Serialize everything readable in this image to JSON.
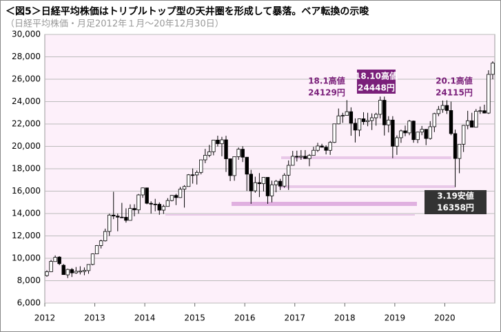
{
  "chart_data": {
    "type": "candlestick",
    "title": "＜図5＞日経平均株価はトリプルトップ型の天井圏を形成して暴落。ベア転換の示唆",
    "subtitle": "（日経平均株価・月足2012年１月～20年12月30日）",
    "annotations": [
      "18.1高値",
      "24129円",
      "18.10高値",
      "24448円",
      "20.1高値",
      "24115円",
      "3.19安値",
      "16358円"
    ],
    "categories": [
      "2012",
      null,
      null,
      null,
      null,
      null,
      null,
      null,
      null,
      null,
      null,
      null,
      "2013",
      null,
      null,
      null,
      null,
      null,
      null,
      null,
      null,
      null,
      null,
      null,
      "2014",
      null,
      null,
      null,
      null,
      null,
      null,
      null,
      null,
      null,
      null,
      null,
      "2015",
      null,
      null,
      null,
      null,
      null,
      null,
      null,
      null,
      null,
      null,
      null,
      "2016",
      null,
      null,
      null,
      null,
      null,
      null,
      null,
      null,
      null,
      null,
      null,
      "2017",
      null,
      null,
      null,
      null,
      null,
      null,
      null,
      null,
      null,
      null,
      null,
      "2018",
      null,
      null,
      null,
      null,
      null,
      null,
      null,
      null,
      null,
      null,
      null,
      "2019",
      null,
      null,
      null,
      null,
      null,
      null,
      null,
      null,
      null,
      null,
      null,
      "2020",
      null,
      null,
      null,
      null,
      null,
      null,
      null,
      null,
      null,
      null,
      null
    ],
    "open": [
      8455,
      8800,
      9707,
      10110,
      9380,
      8520,
      9000,
      8700,
      8780,
      8820,
      8900,
      9450,
      10400,
      11138,
      11559,
      12398,
      13861,
      13774,
      13677,
      13668,
      13389,
      14455,
      14327,
      15662,
      16291,
      14914,
      14841,
      14828,
      14304,
      14632,
      15162,
      15621,
      15425,
      16174,
      16414,
      17460,
      17450,
      17674,
      18797,
      19206,
      19520,
      20563,
      20235,
      20585,
      18890,
      17388,
      19083,
      19747,
      19033,
      17518,
      16026,
      16758,
      16666,
      17234,
      15575,
      16569,
      16887,
      16449,
      17425,
      18308,
      19114,
      19041,
      19118,
      18909,
      19196,
      19650,
      20033,
      19925,
      19646,
      20356,
      22011,
      22724,
      22764,
      23098,
      22068,
      21454,
      22467,
      22202,
      22305,
      22554,
      22865,
      24120,
      21920,
      22351,
      20014,
      20773,
      21385,
      21206,
      22259,
      20601,
      21276,
      21521,
      20704,
      21756,
      22927,
      23294,
      23656,
      23205,
      21143,
      18917,
      20193,
      21877,
      22288,
      21710,
      23140,
      23185,
      22977,
      26433
    ],
    "high": [
      8929,
      9866,
      10255,
      10190,
      9496,
      9075,
      9136,
      9222,
      9288,
      9181,
      9460,
      10433,
      11183,
      11662,
      12650,
      13980,
      15942,
      14000,
      14953,
      14466,
      14817,
      14828,
      15749,
      16320,
      16164,
      15094,
      15312,
      14996,
      14800,
      15376,
      15646,
      15759,
      16374,
      16533,
      17520,
      18030,
      17850,
      18800,
      19778,
      20133,
      20563,
      20952,
      20850,
      20946,
      18900,
      19100,
      19900,
      20012,
      19000,
      17905,
      17291,
      17613,
      17251,
      17100,
      16938,
      17000,
      17100,
      17600,
      18746,
      19592,
      19615,
      19668,
      19668,
      19310,
      19962,
      20318,
      20230,
      20100,
      20481,
      22011,
      23382,
      23000,
      24129,
      23486,
      22500,
      22500,
      23050,
      23000,
      22949,
      23000,
      24448,
      24448,
      22698,
      22698,
      20983,
      21500,
      21860,
      22362,
      22307,
      21300,
      21823,
      21500,
      22255,
      23000,
      23608,
      24091,
      24115,
      24000,
      21500,
      20000,
      21916,
      23178,
      23000,
      23338,
      23559,
      23725,
      26800,
      27600
    ],
    "low": [
      8349,
      8765,
      9708,
      9388,
      8560,
      8238,
      8328,
      8612,
      8560,
      8488,
      8619,
      9380,
      10398,
      10880,
      11500,
      12003,
      13500,
      12415,
      13614,
      13188,
      13388,
      13748,
      13986,
      15405,
      14826,
      13995,
      14203,
      13885,
      13964,
      14617,
      15090,
      14753,
      15397,
      14529,
      16400,
      16672,
      16592,
      17500,
      18500,
      19034,
      19200,
      19991,
      19115,
      17714,
      16901,
      16930,
      18800,
      18600,
      16017,
      14865,
      15857,
      15471,
      15975,
      14864,
      15000,
      15900,
      16100,
      16300,
      16111,
      18300,
      18650,
      18800,
      18900,
      18224,
      19200,
      19500,
      19900,
      19280,
      19239,
      20300,
      21972,
      22100,
      22800,
      20950,
      20347,
      20900,
      21931,
      21800,
      21462,
      21851,
      22500,
      20971,
      21243,
      18948,
      19241,
      20315,
      20911,
      21000,
      20327,
      20289,
      21000,
      20110,
      20600,
      21276,
      22700,
      23000,
      22892,
      21000,
      16358,
      17600,
      19500,
      21530,
      21710,
      21800,
      22900,
      22948,
      22900,
      26000
    ],
    "close": [
      8802,
      9723,
      10083,
      9520,
      8543,
      9007,
      8695,
      8840,
      8870,
      8928,
      9446,
      10395,
      11138,
      11559,
      12398,
      13861,
      13774,
      13677,
      13668,
      13389,
      14455,
      14327,
      15662,
      16291,
      14914,
      14841,
      14828,
      14304,
      14632,
      15162,
      15621,
      15425,
      16174,
      16414,
      17460,
      17450,
      17674,
      18797,
      19206,
      19520,
      20563,
      20235,
      20585,
      18890,
      17388,
      19083,
      19747,
      19033,
      17518,
      16026,
      16758,
      16666,
      17234,
      15575,
      16569,
      16887,
      16449,
      17425,
      18308,
      19114,
      19041,
      19118,
      18909,
      19196,
      19650,
      20033,
      19925,
      19646,
      20356,
      22011,
      22724,
      22764,
      23098,
      22068,
      21454,
      22467,
      22202,
      22305,
      22554,
      22865,
      24120,
      21920,
      22351,
      20014,
      20773,
      21385,
      21206,
      22259,
      20601,
      21276,
      21521,
      20704,
      21756,
      22927,
      23294,
      23656,
      23205,
      21143,
      18917,
      20193,
      21877,
      22288,
      21710,
      23140,
      23185,
      22977,
      26433,
      27444
    ],
    "up_color": "#ffffff",
    "down_color": "#000000",
    "ylim": [
      6000,
      30000
    ],
    "yticks": [
      {
        "value": 6000,
        "label": "6,000"
      },
      {
        "value": 8000,
        "label": "8,000"
      },
      {
        "value": 10000,
        "label": "10,000"
      },
      {
        "value": 12000,
        "label": "12,000"
      },
      {
        "value": 14000,
        "label": "14,000"
      },
      {
        "value": 16000,
        "label": "16,000"
      },
      {
        "value": 18000,
        "label": "18,000"
      },
      {
        "value": 20000,
        "label": "20,000"
      },
      {
        "value": 22000,
        "label": "22,000"
      },
      {
        "value": 24000,
        "label": "24,000"
      },
      {
        "value": 26000,
        "label": "26,000"
      },
      {
        "value": 28000,
        "label": "28,000"
      },
      {
        "value": 30000,
        "label": "30,000"
      }
    ],
    "grid": true
  }
}
